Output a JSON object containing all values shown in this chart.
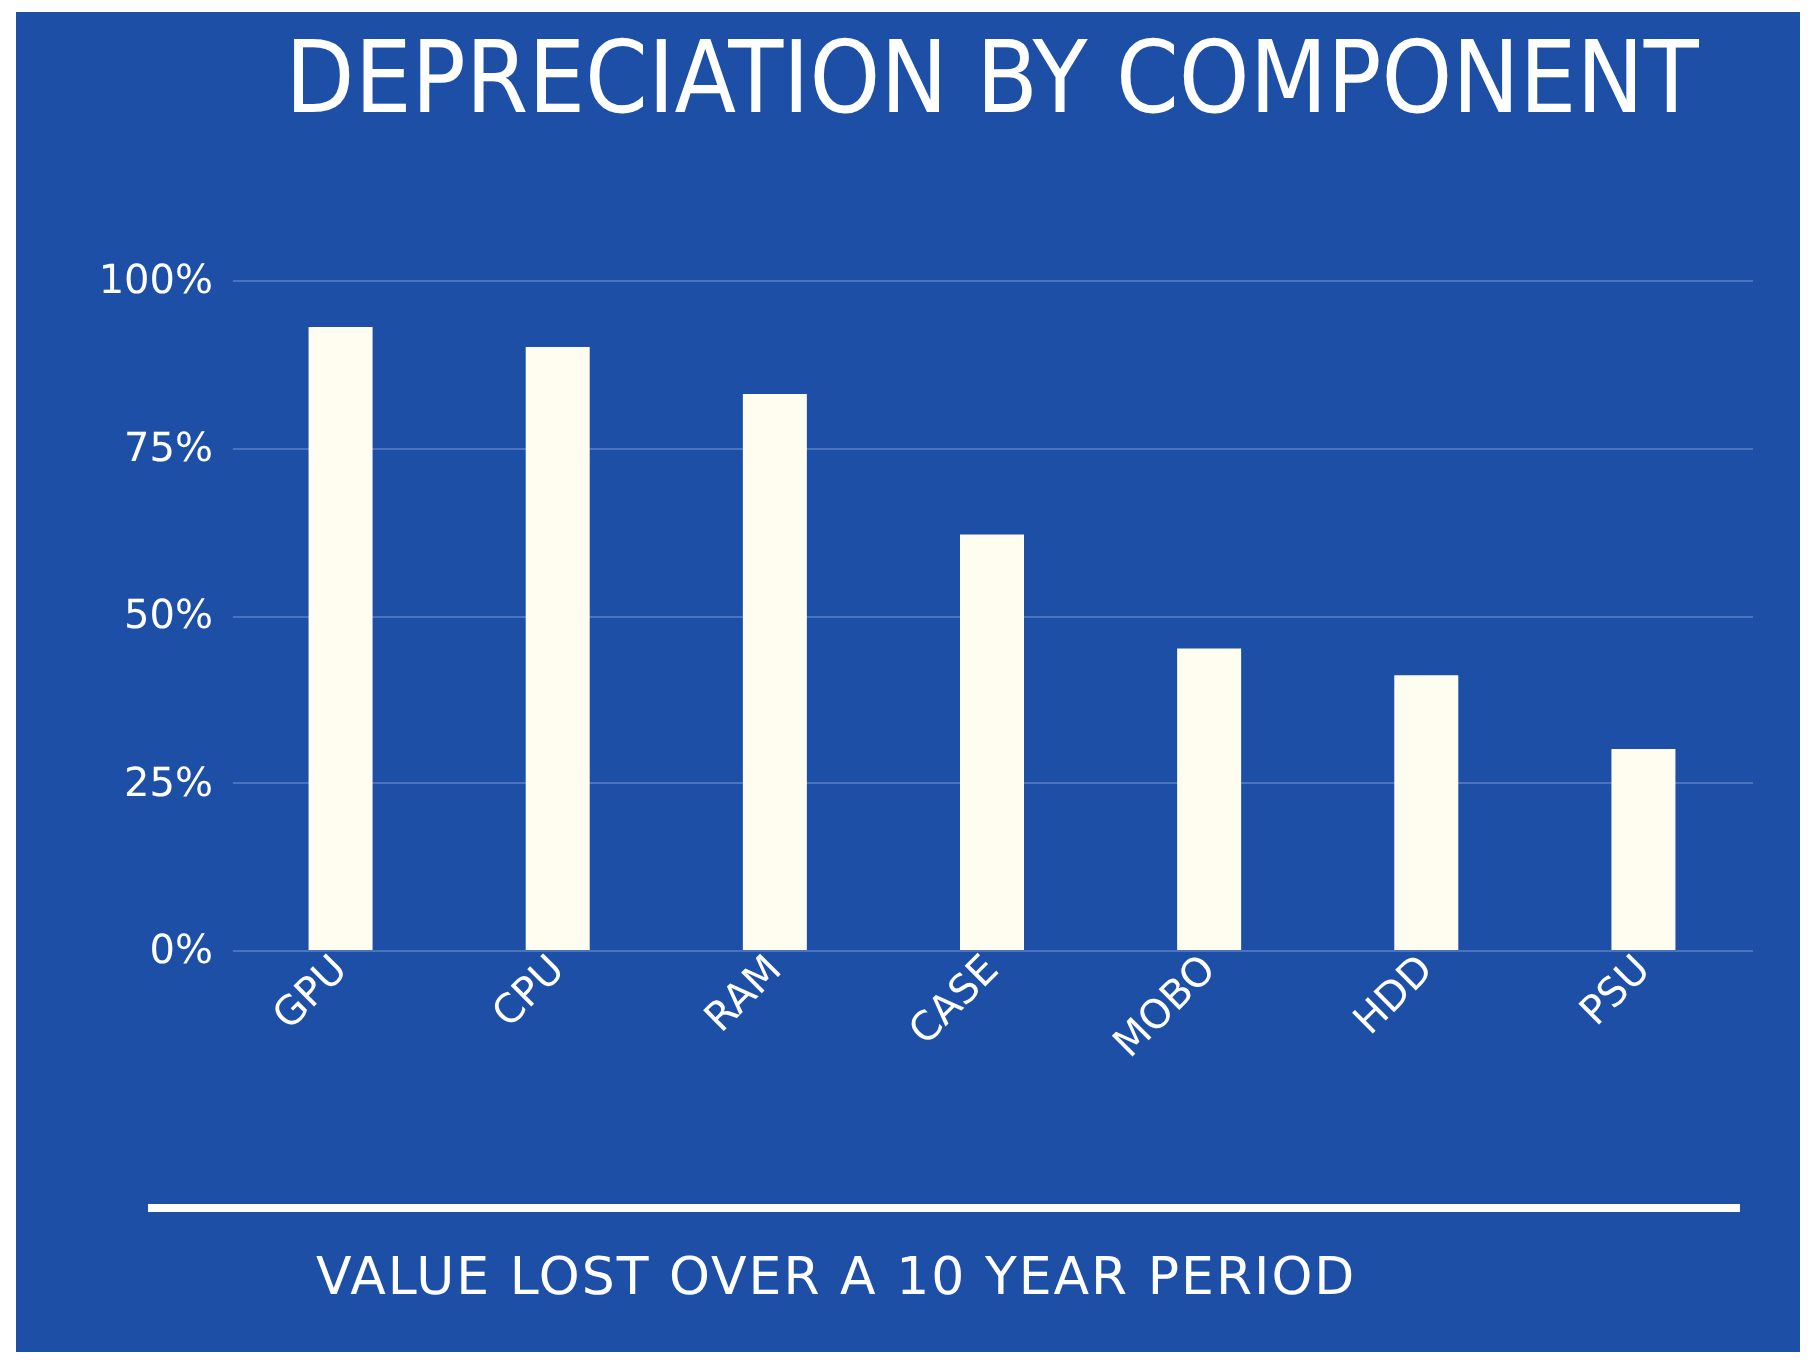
{
  "chart_data": {
    "type": "bar",
    "title": "DEPRECIATION BY COMPONENT",
    "categories": [
      "GPU",
      "CPU",
      "RAM",
      "CASE",
      "MOBO",
      "HDD",
      "PSU"
    ],
    "values": [
      93,
      90,
      83,
      62,
      45,
      41,
      30
    ],
    "color": "#fffdf0",
    "ylim": [
      0,
      100
    ],
    "yticks": [
      {
        "value": 0,
        "label": "0%"
      },
      {
        "value": 25,
        "label": "25%"
      },
      {
        "value": 50,
        "label": "50%"
      },
      {
        "value": 75,
        "label": "75%"
      },
      {
        "value": 100,
        "label": "100%"
      }
    ],
    "grid": "y",
    "annotations": [
      "VALUE LOST OVER A 10 YEAR PERIOD"
    ]
  }
}
